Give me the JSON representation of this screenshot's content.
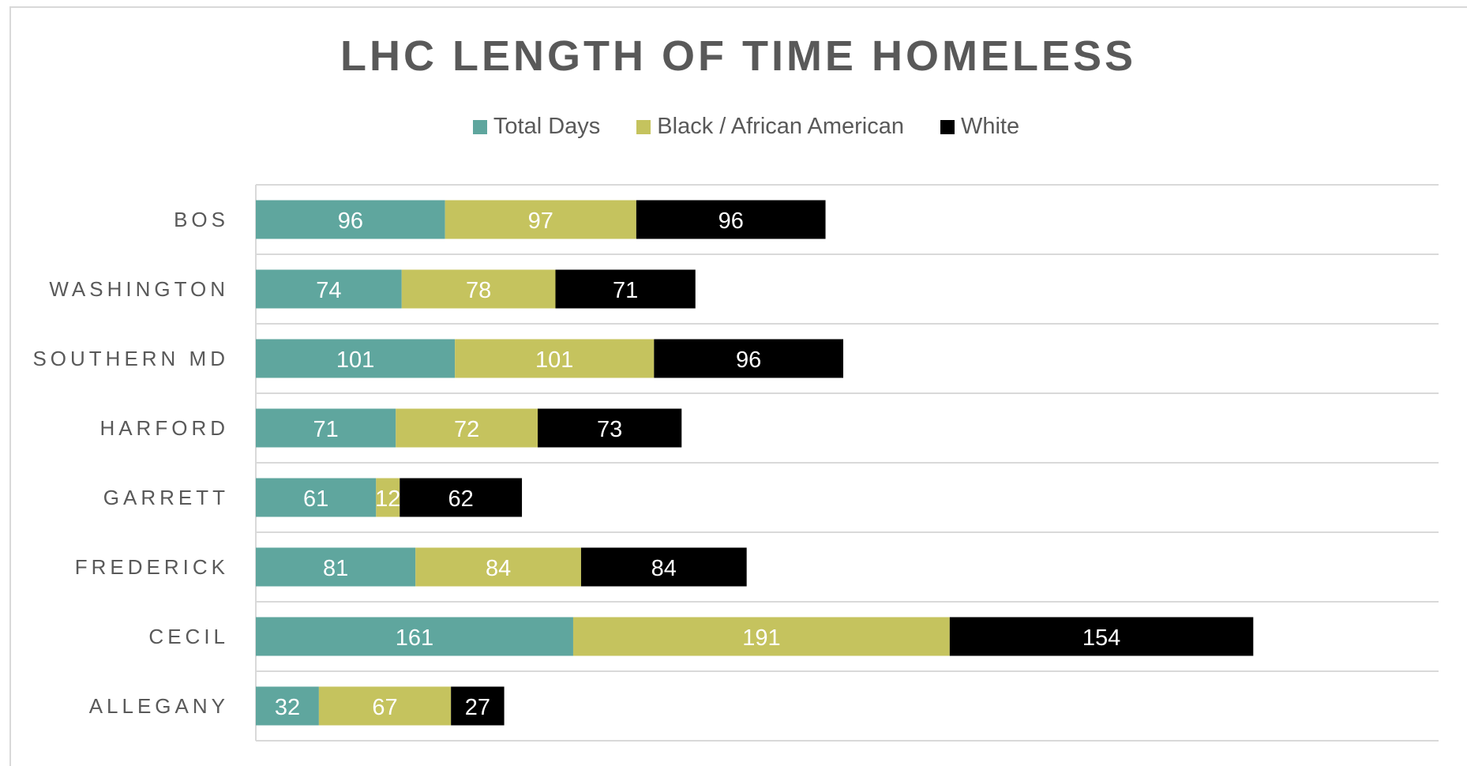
{
  "chart_data": {
    "type": "bar",
    "orientation": "horizontal",
    "stacked": true,
    "title": "LHC LENGTH OF TIME HOMELESS",
    "categories": [
      "BOS",
      "WASHINGTON",
      "SOUTHERN MD",
      "HARFORD",
      "GARRETT",
      "FREDERICK",
      "CECIL",
      "ALLEGANY"
    ],
    "series": [
      {
        "name": "Total Days",
        "color": "#5fa69e",
        "values": [
          96,
          74,
          101,
          71,
          61,
          81,
          161,
          32
        ]
      },
      {
        "name": "Black / African American",
        "color": "#c5c35e",
        "values": [
          97,
          78,
          101,
          72,
          12,
          84,
          191,
          67
        ]
      },
      {
        "name": "White",
        "color": "#000000",
        "values": [
          96,
          71,
          96,
          73,
          62,
          84,
          154,
          27
        ]
      }
    ],
    "xlim": [
      0,
      600
    ],
    "legend_position": "top",
    "data_labels": true,
    "grid": "horizontal separators"
  }
}
